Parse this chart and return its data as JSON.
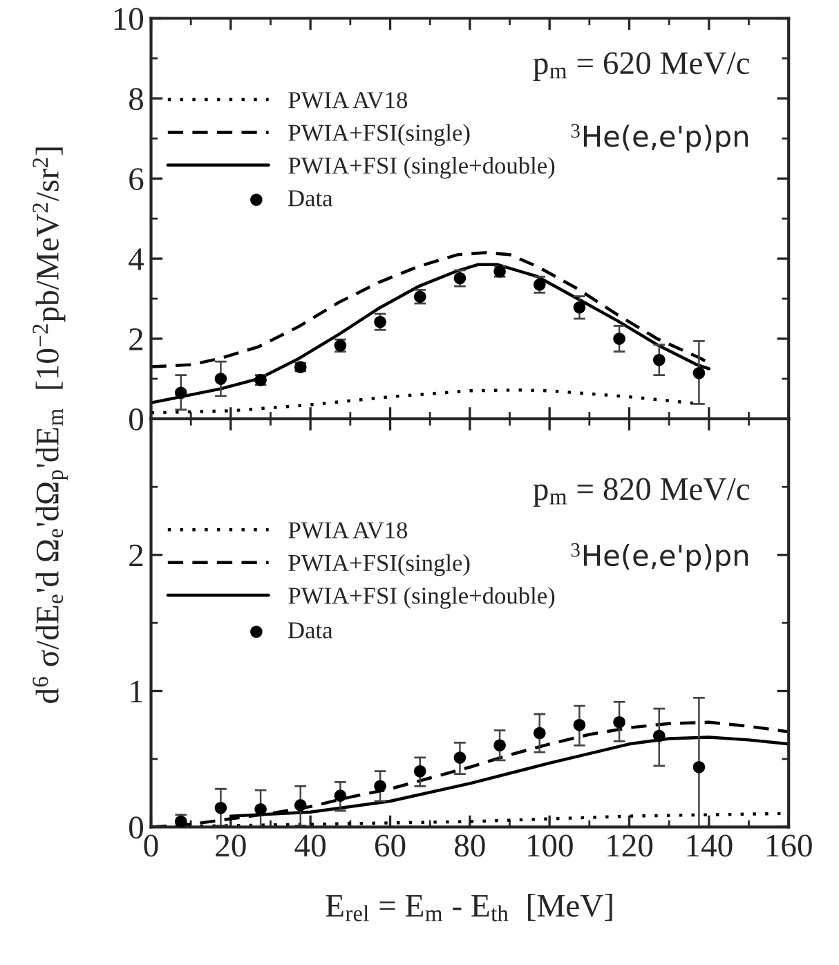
{
  "chart_data": [
    {
      "type": "line",
      "ylabel": "d$^{6}$ σ/dE$_{e}$'d Ω$_{e}$'dΩ$_{p}$'dE$_{m}$  [10$^{−2}$pb/MeV$^{2}$/sr$^{2}$]",
      "xlim": [
        0,
        160
      ],
      "xticks": [
        0,
        20,
        40,
        60,
        80,
        100,
        120,
        140,
        160
      ],
      "ylim": [
        0,
        10
      ],
      "yticks": [
        0,
        2,
        4,
        6,
        8,
        10
      ],
      "tick_labels": "y",
      "legend": "top left",
      "grid": false,
      "annotations": [
        "p$_{m}$ = 620 MeV/c",
        "$^{3}$He(e,e'p)pn"
      ],
      "series": [
        {
          "name": "PWIA AV18",
          "line_style": "dotted",
          "color": "#000000",
          "x": [
            0,
            20,
            40,
            60,
            80,
            92,
            100,
            120,
            137
          ],
          "values": [
            0.15,
            0.2,
            0.35,
            0.55,
            0.7,
            0.72,
            0.7,
            0.55,
            0.38
          ]
        },
        {
          "name": "PWIA+FSI(single)",
          "line_style": "dashed",
          "color": "#000000",
          "x": [
            0,
            10,
            17,
            27,
            37,
            47,
            57,
            67,
            77,
            84,
            90,
            97,
            107,
            117,
            127,
            137,
            140
          ],
          "values": [
            1.3,
            1.35,
            1.5,
            1.8,
            2.3,
            2.9,
            3.4,
            3.8,
            4.1,
            4.15,
            4.1,
            3.8,
            3.25,
            2.6,
            2.0,
            1.55,
            1.4
          ]
        },
        {
          "name": "PWIA+FSI (single+double)",
          "line_style": "solid",
          "color": "#000000",
          "x": [
            0,
            10,
            17.5,
            27,
            37,
            47,
            57,
            67,
            77,
            82,
            87,
            97,
            107,
            117,
            127,
            137,
            140
          ],
          "values": [
            0.4,
            0.6,
            0.75,
            1.0,
            1.5,
            2.1,
            2.75,
            3.3,
            3.7,
            3.85,
            3.85,
            3.55,
            3.0,
            2.45,
            1.85,
            1.35,
            1.25
          ]
        },
        {
          "name": "Data",
          "type": "scatter",
          "marker": "circle",
          "color": "#000000",
          "x": [
            7.5,
            17.5,
            27.5,
            37.5,
            47.5,
            57.5,
            67.5,
            77.5,
            87.5,
            97.5,
            107.5,
            117.5,
            127.5,
            137.5
          ],
          "values": [
            0.65,
            1.0,
            0.97,
            1.29,
            1.83,
            2.42,
            3.05,
            3.51,
            3.68,
            3.35,
            2.78,
            2.0,
            1.47,
            1.14
          ],
          "errors": [
            [
              0.23,
              1.09
            ],
            [
              0.57,
              1.43
            ],
            [
              0.85,
              1.09
            ],
            [
              1.19,
              1.39
            ],
            [
              1.68,
              1.98
            ],
            [
              2.22,
              2.62
            ],
            [
              2.88,
              3.22
            ],
            [
              3.31,
              3.71
            ],
            [
              3.55,
              3.81
            ],
            [
              3.15,
              3.55
            ],
            [
              2.5,
              3.06
            ],
            [
              1.68,
              2.32
            ],
            [
              1.09,
              1.85
            ],
            [
              0.37,
              1.94
            ]
          ]
        }
      ]
    },
    {
      "type": "line",
      "xlabel": "E$_{rel}$ = E$_{m}$ - E$_{th}$  [MeV]",
      "xlim": [
        0,
        160
      ],
      "xticks": [
        0,
        20,
        40,
        60,
        80,
        100,
        120,
        140,
        160
      ],
      "ylim": [
        0,
        3
      ],
      "yticks": [
        0,
        1,
        2,
        {
          "value": 3,
          "label": null
        }
      ],
      "legend": "top left",
      "grid": false,
      "annotations": [
        "p$_{m}$ = 820 MeV/c",
        "$^{3}$He(e,e'p)pn"
      ],
      "series": [
        {
          "name": "PWIA AV18",
          "line_style": "dotted",
          "color": "#000000",
          "x": [
            0,
            20,
            40,
            60,
            80,
            100,
            120,
            140,
            160
          ],
          "values": [
            0.0,
            0.01,
            0.02,
            0.03,
            0.04,
            0.06,
            0.08,
            0.09,
            0.1
          ]
        },
        {
          "name": "PWIA+FSI(single)",
          "line_style": "dashed",
          "color": "#000000",
          "x": [
            0,
            10,
            20,
            30,
            40,
            50,
            60,
            70,
            80,
            90,
            100,
            110,
            120,
            130,
            140,
            150,
            160
          ],
          "values": [
            0.0,
            0.02,
            0.06,
            0.1,
            0.15,
            0.22,
            0.28,
            0.36,
            0.44,
            0.53,
            0.61,
            0.68,
            0.73,
            0.76,
            0.77,
            0.74,
            0.7
          ]
        },
        {
          "name": "PWIA+FSI (single+double)",
          "line_style": "solid",
          "color": "#000000",
          "x": [
            20,
            40,
            60,
            80,
            100,
            120,
            130,
            140,
            150,
            160
          ],
          "values": [
            0.08,
            0.11,
            0.19,
            0.32,
            0.47,
            0.61,
            0.65,
            0.66,
            0.64,
            0.61
          ]
        },
        {
          "name": "Data",
          "type": "scatter",
          "marker": "circle",
          "color": "#000000",
          "x": [
            7.5,
            17.5,
            27.5,
            37.5,
            47.5,
            57.5,
            67.5,
            77.5,
            87.5,
            97.5,
            107.5,
            117.5,
            127.5,
            137.5
          ],
          "values": [
            0.04,
            0.14,
            0.13,
            0.16,
            0.23,
            0.3,
            0.41,
            0.51,
            0.6,
            0.69,
            0.75,
            0.77,
            0.67,
            0.44
          ],
          "errors": [
            [
              0.0,
              0.09
            ],
            [
              0.01,
              0.28
            ],
            [
              0.0,
              0.27
            ],
            [
              0.01,
              0.3
            ],
            [
              0.12,
              0.33
            ],
            [
              0.19,
              0.41
            ],
            [
              0.3,
              0.51
            ],
            [
              0.39,
              0.62
            ],
            [
              0.49,
              0.71
            ],
            [
              0.55,
              0.83
            ],
            [
              0.6,
              0.89
            ],
            [
              0.63,
              0.92
            ],
            [
              0.45,
              0.87
            ],
            [
              0.0,
              0.95
            ]
          ]
        }
      ]
    }
  ]
}
